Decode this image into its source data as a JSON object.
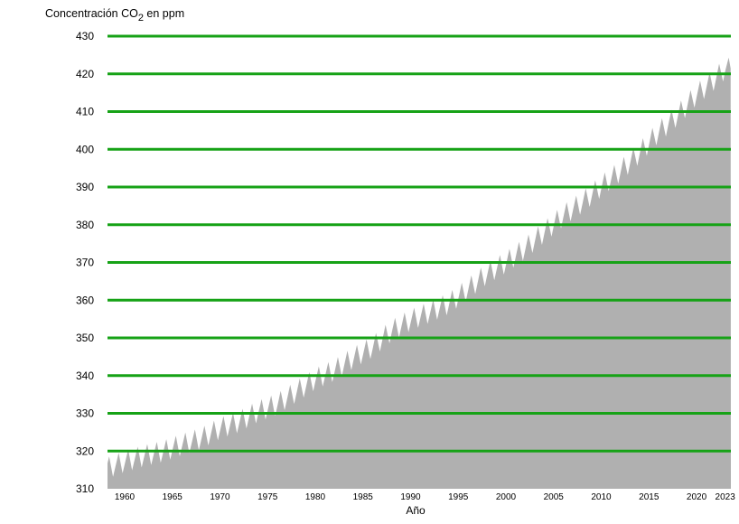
{
  "chart_data": {
    "type": "area",
    "title": "",
    "ylabel_prefix": "Concentración CO",
    "ylabel_subscript": "2",
    "ylabel_suffix": " en ppm",
    "xlabel": "Año",
    "xlim": [
      1958.2,
      2023.6
    ],
    "ylim": [
      310,
      430
    ],
    "y_ticks": [
      310,
      320,
      330,
      340,
      350,
      360,
      370,
      380,
      390,
      400,
      410,
      420,
      430
    ],
    "x_ticks": [
      1960,
      1965,
      1970,
      1975,
      1980,
      1985,
      1990,
      1995,
      2000,
      2005,
      2010,
      2015,
      2020,
      2023
    ],
    "grid": "horizontal",
    "colors": {
      "area": "#b0b0b0",
      "grid": "#16a216"
    },
    "series": [
      {
        "x": [
          1958,
          1960,
          1962,
          1964,
          1966,
          1968,
          1970,
          1972,
          1974,
          1976,
          1978,
          1980,
          1982,
          1984,
          1986,
          1988,
          1990,
          1992,
          1994,
          1996,
          1998,
          2000,
          2002,
          2004,
          2006,
          2008,
          2010,
          2012,
          2014,
          2016,
          2018,
          2020,
          2022,
          2023
        ],
        "values": [
          315.0,
          316.9,
          318.4,
          319.6,
          321.4,
          323.0,
          325.7,
          327.5,
          330.2,
          332.1,
          335.4,
          338.8,
          341.1,
          344.4,
          347.3,
          351.6,
          354.4,
          356.5,
          358.8,
          362.6,
          366.7,
          369.7,
          373.4,
          377.7,
          382.1,
          385.6,
          389.9,
          393.9,
          398.7,
          404.2,
          408.7,
          414.2,
          418.5,
          421.1
        ],
        "seasonal_amplitude_ppm": 6.5
      }
    ]
  }
}
